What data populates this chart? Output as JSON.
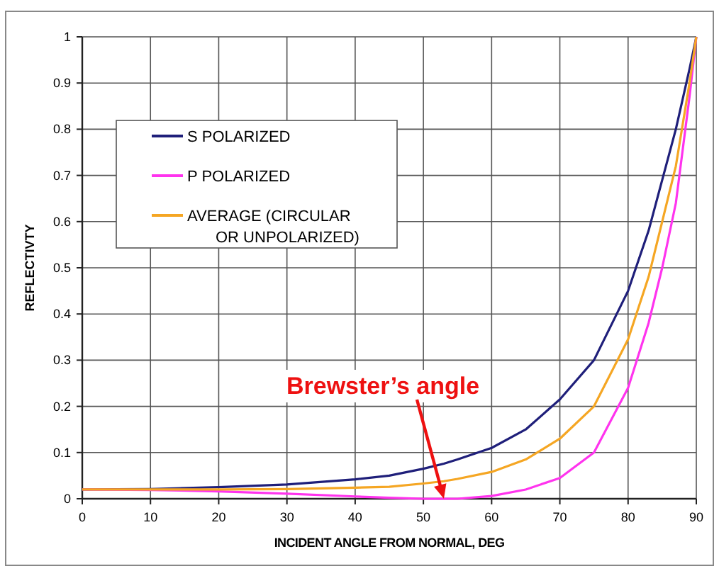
{
  "chart_data": {
    "type": "line",
    "xlabel": "INCIDENT ANGLE FROM NORMAL, DEG",
    "ylabel": "REFLECTIVTY",
    "x": [
      0,
      10,
      20,
      30,
      40,
      45,
      50,
      53,
      55,
      60,
      65,
      70,
      75,
      80,
      83,
      85,
      87,
      89,
      90
    ],
    "series": [
      {
        "name": "S POLARIZED",
        "color": "#1f1f7a",
        "values": [
          0.02,
          0.021,
          0.025,
          0.031,
          0.042,
          0.05,
          0.065,
          0.076,
          0.085,
          0.11,
          0.15,
          0.215,
          0.3,
          0.45,
          0.58,
          0.69,
          0.8,
          0.93,
          1
        ]
      },
      {
        "name": "P POLARIZED",
        "color": "#ff33ee",
        "values": [
          0.02,
          0.019,
          0.016,
          0.011,
          0.005,
          0.002,
          0,
          0,
          0,
          0.006,
          0.02,
          0.045,
          0.1,
          0.24,
          0.38,
          0.5,
          0.64,
          0.87,
          1
        ]
      },
      {
        "name": "AVERAGE (CIRCULAR\nOR UNPOLARIZED)",
        "color": "#f5a623",
        "values": [
          0.02,
          0.02,
          0.02,
          0.021,
          0.024,
          0.026,
          0.033,
          0.038,
          0.043,
          0.058,
          0.085,
          0.13,
          0.2,
          0.345,
          0.48,
          0.6,
          0.72,
          0.9,
          1
        ]
      }
    ],
    "xlim": [
      0,
      90
    ],
    "xticks": [
      0,
      10,
      20,
      30,
      40,
      50,
      60,
      70,
      80,
      90
    ],
    "ylim": [
      0,
      1
    ],
    "yticks": [
      0,
      0.1,
      0.2,
      0.3,
      0.4,
      0.5,
      0.6,
      0.7,
      0.8,
      0.9,
      1
    ],
    "grid": true,
    "legend": "top left",
    "marker": "none",
    "line_style": "solid",
    "annotations": [
      {
        "text": "Brewster’s angle",
        "x": 53,
        "y": 0
      }
    ]
  }
}
